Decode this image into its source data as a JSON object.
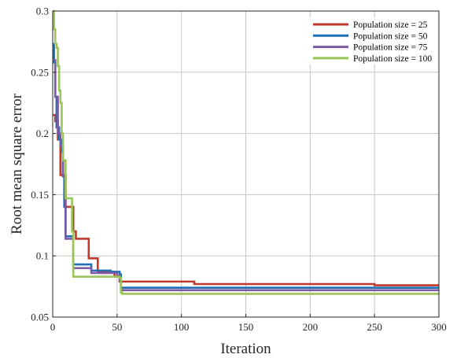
{
  "chart_data": {
    "type": "line",
    "title": "",
    "xlabel": "Iteration",
    "ylabel": "Root mean square error",
    "xlim": [
      0,
      300
    ],
    "ylim": [
      0.05,
      0.3
    ],
    "xticks": [
      "0",
      "50",
      "100",
      "150",
      "200",
      "250",
      "300"
    ],
    "yticks": [
      "0.05",
      "0.1",
      "0.15",
      "0.2",
      "0.25",
      "0.3"
    ],
    "grid": true,
    "legend_position": "top-right",
    "series": [
      {
        "name": "Population size = 25",
        "color": "#c0392b",
        "x": [
          0,
          2,
          4,
          6,
          8,
          10,
          12,
          14,
          16,
          18,
          25,
          28,
          32,
          35,
          40,
          45,
          48,
          50,
          52,
          55,
          60,
          100,
          105,
          110,
          200,
          245,
          250,
          300
        ],
        "y": [
          0.215,
          0.21,
          0.195,
          0.166,
          0.166,
          0.14,
          0.14,
          0.14,
          0.12,
          0.114,
          0.114,
          0.098,
          0.098,
          0.087,
          0.087,
          0.087,
          0.083,
          0.083,
          0.079,
          0.079,
          0.079,
          0.079,
          0.079,
          0.077,
          0.077,
          0.077,
          0.076,
          0.076
        ]
      },
      {
        "name": "Population size = 50",
        "color": "#1f6fb5",
        "x": [
          0,
          1,
          2,
          3,
          4,
          5,
          6,
          7,
          8,
          9,
          10,
          12,
          14,
          16,
          18,
          20,
          25,
          30,
          35,
          40,
          45,
          50,
          52,
          53,
          55,
          300
        ],
        "y": [
          0.273,
          0.258,
          0.23,
          0.205,
          0.205,
          0.195,
          0.195,
          0.185,
          0.165,
          0.14,
          0.116,
          0.116,
          0.116,
          0.093,
          0.093,
          0.093,
          0.093,
          0.088,
          0.088,
          0.088,
          0.087,
          0.087,
          0.085,
          0.074,
          0.074,
          0.074
        ]
      },
      {
        "name": "Population size = 75",
        "color": "#7b5aa6",
        "x": [
          0,
          2,
          4,
          6,
          8,
          10,
          12,
          14,
          16,
          18,
          22,
          28,
          30,
          40,
          48,
          50,
          52,
          53,
          55,
          300
        ],
        "y": [
          0.26,
          0.23,
          0.2,
          0.19,
          0.165,
          0.114,
          0.114,
          0.114,
          0.09,
          0.09,
          0.09,
          0.09,
          0.086,
          0.086,
          0.086,
          0.084,
          0.08,
          0.072,
          0.072,
          0.072
        ]
      },
      {
        "name": "Population size = 100",
        "color": "#9bc45a",
        "x": [
          0,
          1,
          2,
          3,
          4,
          5,
          6,
          7,
          8,
          9,
          10,
          12,
          14,
          15,
          16,
          20,
          30,
          40,
          50,
          52,
          53,
          54,
          300
        ],
        "y": [
          0.3,
          0.285,
          0.273,
          0.27,
          0.255,
          0.235,
          0.225,
          0.2,
          0.178,
          0.178,
          0.147,
          0.147,
          0.147,
          0.12,
          0.083,
          0.083,
          0.083,
          0.083,
          0.083,
          0.082,
          0.07,
          0.069,
          0.069
        ]
      }
    ]
  }
}
